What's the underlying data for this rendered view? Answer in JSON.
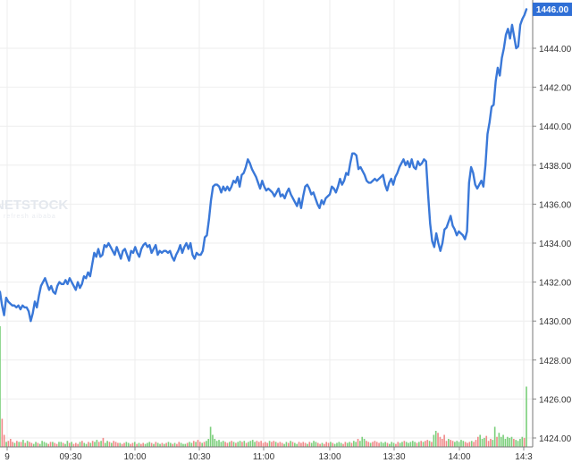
{
  "chart_data": {
    "type": "line",
    "title": "",
    "xlabel": "",
    "ylabel": "",
    "ylim": [
      1423.2,
      1446.4
    ],
    "y_ticks": [
      "1424.00",
      "1426.00",
      "1428.00",
      "1430.00",
      "1432.00",
      "1434.00",
      "1436.00",
      "1438.00",
      "1440.00",
      "1442.00",
      "1444.00"
    ],
    "x_ticks": [
      "9",
      "09:30",
      "10:00",
      "10:30",
      "11:00",
      "13:00",
      "13:30",
      "14:00",
      "14:3"
    ],
    "last_price": "1446.00",
    "grid": true,
    "line_color": "#3a78d8",
    "volume_up_color": "#7ccf7c",
    "volume_down_color": "#f08a8a",
    "watermark": {
      "brand": "NETSTOCK",
      "tagline": "refresh aibaba"
    },
    "series": [
      {
        "values": [
          1431.5,
          1430.8,
          1430.3,
          1431.2,
          1431.0,
          1430.9,
          1430.8,
          1430.8,
          1430.7,
          1430.8,
          1430.6,
          1430.8,
          1430.7,
          1430.7,
          1430.5,
          1430.0,
          1430.4,
          1431.0,
          1430.7,
          1431.3,
          1431.8,
          1432.0,
          1432.2,
          1431.9,
          1431.6,
          1431.8,
          1431.5,
          1431.4,
          1431.8,
          1432.0,
          1431.9,
          1431.9,
          1432.1,
          1431.9,
          1432.2,
          1432.0,
          1431.8,
          1431.6,
          1432.0,
          1431.7,
          1431.9,
          1432.3,
          1432.2,
          1432.5,
          1432.3,
          1432.9,
          1433.5,
          1433.3,
          1433.7,
          1433.3,
          1433.4,
          1433.9,
          1433.8,
          1434.0,
          1433.8,
          1433.6,
          1433.4,
          1433.8,
          1433.5,
          1433.2,
          1433.6,
          1433.7,
          1433.4,
          1433.1,
          1433.6,
          1433.5,
          1433.8,
          1433.5,
          1433.3,
          1433.7,
          1433.9,
          1434.0,
          1433.8,
          1433.9,
          1433.5,
          1433.7,
          1433.9,
          1433.4,
          1433.6,
          1433.5,
          1433.6,
          1433.6,
          1433.5,
          1433.6,
          1433.3,
          1433.1,
          1433.4,
          1433.6,
          1433.9,
          1433.5,
          1433.8,
          1434.0,
          1433.7,
          1434.0,
          1433.4,
          1433.2,
          1433.5,
          1433.4,
          1433.4,
          1433.6,
          1434.3,
          1434.4,
          1435.2,
          1436.2,
          1436.9,
          1437.0,
          1437.0,
          1436.9,
          1436.6,
          1436.9,
          1436.7,
          1436.9,
          1436.7,
          1436.9,
          1437.2,
          1437.1,
          1437.4,
          1436.9,
          1437.5,
          1437.6,
          1437.9,
          1438.3,
          1438.1,
          1437.8,
          1437.6,
          1437.4,
          1437.1,
          1436.8,
          1437.2,
          1436.9,
          1436.7,
          1436.8,
          1436.7,
          1436.6,
          1436.4,
          1436.6,
          1436.8,
          1436.4,
          1436.5,
          1436.3,
          1436.6,
          1436.8,
          1436.5,
          1436.3,
          1436.1,
          1435.9,
          1436.3,
          1435.8,
          1436.4,
          1436.9,
          1437.0,
          1436.8,
          1436.5,
          1436.6,
          1436.3,
          1436.0,
          1435.8,
          1436.2,
          1436.0,
          1436.3,
          1436.4,
          1436.5,
          1436.9,
          1436.8,
          1436.6,
          1436.9,
          1437.3,
          1437.0,
          1437.2,
          1437.6,
          1437.5,
          1438.1,
          1438.6,
          1438.6,
          1438.5,
          1437.8,
          1437.9,
          1437.7,
          1437.5,
          1437.2,
          1437.1,
          1437.1,
          1437.2,
          1437.3,
          1437.2,
          1437.3,
          1437.4,
          1437.5,
          1437.0,
          1436.7,
          1437.1,
          1437.3,
          1437.0,
          1437.4,
          1437.6,
          1437.9,
          1438.1,
          1438.3,
          1438.0,
          1438.2,
          1437.9,
          1438.3,
          1437.9,
          1437.8,
          1438.2,
          1438.0,
          1438.1,
          1438.3,
          1438.2,
          1436.5,
          1435.0,
          1434.1,
          1433.8,
          1434.5,
          1434.0,
          1433.6,
          1434.0,
          1434.7,
          1434.8,
          1435.1,
          1435.4,
          1434.9,
          1434.7,
          1434.4,
          1434.6,
          1434.5,
          1434.4,
          1434.2,
          1434.6,
          1437.1,
          1437.9,
          1437.6,
          1437.0,
          1436.8,
          1437.0,
          1437.2,
          1436.9,
          1438.0,
          1439.6,
          1440.2,
          1441.0,
          1441.1,
          1442.3,
          1443.0,
          1442.6,
          1443.5,
          1444.0,
          1444.7,
          1445.0,
          1444.5,
          1445.2,
          1444.6,
          1444.0,
          1444.1,
          1445.2,
          1445.5,
          1445.7,
          1446.0
        ]
      }
    ],
    "volume": [
      1.2,
      0.28,
      0.12,
      0.05,
      0.06,
      0.08,
      0.05,
      0.04,
      0.06,
      0.05,
      0.05,
      0.07,
      0.04,
      0.06,
      0.05,
      0.04,
      0.03,
      0.05,
      0.04,
      0.03,
      0.06,
      0.05,
      0.04,
      0.03,
      0.05,
      0.05,
      0.04,
      0.03,
      0.05,
      0.05,
      0.04,
      0.03,
      0.06,
      0.04,
      0.05,
      0.03,
      0.04,
      0.03,
      0.05,
      0.06,
      0.04,
      0.03,
      0.05,
      0.04,
      0.06,
      0.05,
      0.07,
      0.05,
      0.06,
      0.09,
      0.04,
      0.06,
      0.05,
      0.04,
      0.06,
      0.05,
      0.04,
      0.04,
      0.03,
      0.04,
      0.05,
      0.04,
      0.03,
      0.04,
      0.05,
      0.03,
      0.04,
      0.03,
      0.04,
      0.03,
      0.04,
      0.05,
      0.04,
      0.03,
      0.05,
      0.04,
      0.03,
      0.04,
      0.03,
      0.04,
      0.05,
      0.04,
      0.03,
      0.04,
      0.03,
      0.05,
      0.04,
      0.03,
      0.03,
      0.04,
      0.05,
      0.04,
      0.06,
      0.05,
      0.07,
      0.05,
      0.04,
      0.05,
      0.06,
      0.08,
      0.2,
      0.12,
      0.08,
      0.06,
      0.07,
      0.05,
      0.06,
      0.05,
      0.04,
      0.05,
      0.06,
      0.05,
      0.04,
      0.05,
      0.06,
      0.05,
      0.06,
      0.04,
      0.05,
      0.06,
      0.07,
      0.05,
      0.06,
      0.05,
      0.06,
      0.04,
      0.05,
      0.04,
      0.06,
      0.05,
      0.06,
      0.05,
      0.04,
      0.05,
      0.04,
      0.03,
      0.05,
      0.04,
      0.06,
      0.05,
      0.04,
      0.03,
      0.05,
      0.04,
      0.05,
      0.04,
      0.03,
      0.05,
      0.04,
      0.06,
      0.05,
      0.04,
      0.03,
      0.04,
      0.03,
      0.05,
      0.04,
      0.05,
      0.04,
      0.03,
      0.04,
      0.05,
      0.04,
      0.03,
      0.05,
      0.04,
      0.05,
      0.04,
      0.06,
      0.05,
      0.08,
      0.06,
      0.1,
      0.08,
      0.06,
      0.05,
      0.04,
      0.05,
      0.06,
      0.05,
      0.04,
      0.05,
      0.04,
      0.05,
      0.04,
      0.03,
      0.05,
      0.04,
      0.03,
      0.05,
      0.04,
      0.05,
      0.06,
      0.05,
      0.04,
      0.05,
      0.06,
      0.05,
      0.04,
      0.05,
      0.06,
      0.05,
      0.06,
      0.07,
      0.06,
      0.05,
      0.12,
      0.16,
      0.14,
      0.1,
      0.08,
      0.12,
      0.06,
      0.08,
      0.07,
      0.06,
      0.05,
      0.06,
      0.05,
      0.07,
      0.06,
      0.05,
      0.04,
      0.05,
      0.06,
      0.05,
      0.07,
      0.1,
      0.12,
      0.08,
      0.09,
      0.11,
      0.06,
      0.08,
      0.07,
      0.2,
      0.1,
      0.14,
      0.1,
      0.12,
      0.08,
      0.1,
      0.09,
      0.1,
      0.08,
      0.07,
      0.06,
      0.08,
      0.1,
      0.09,
      0.6
    ]
  }
}
